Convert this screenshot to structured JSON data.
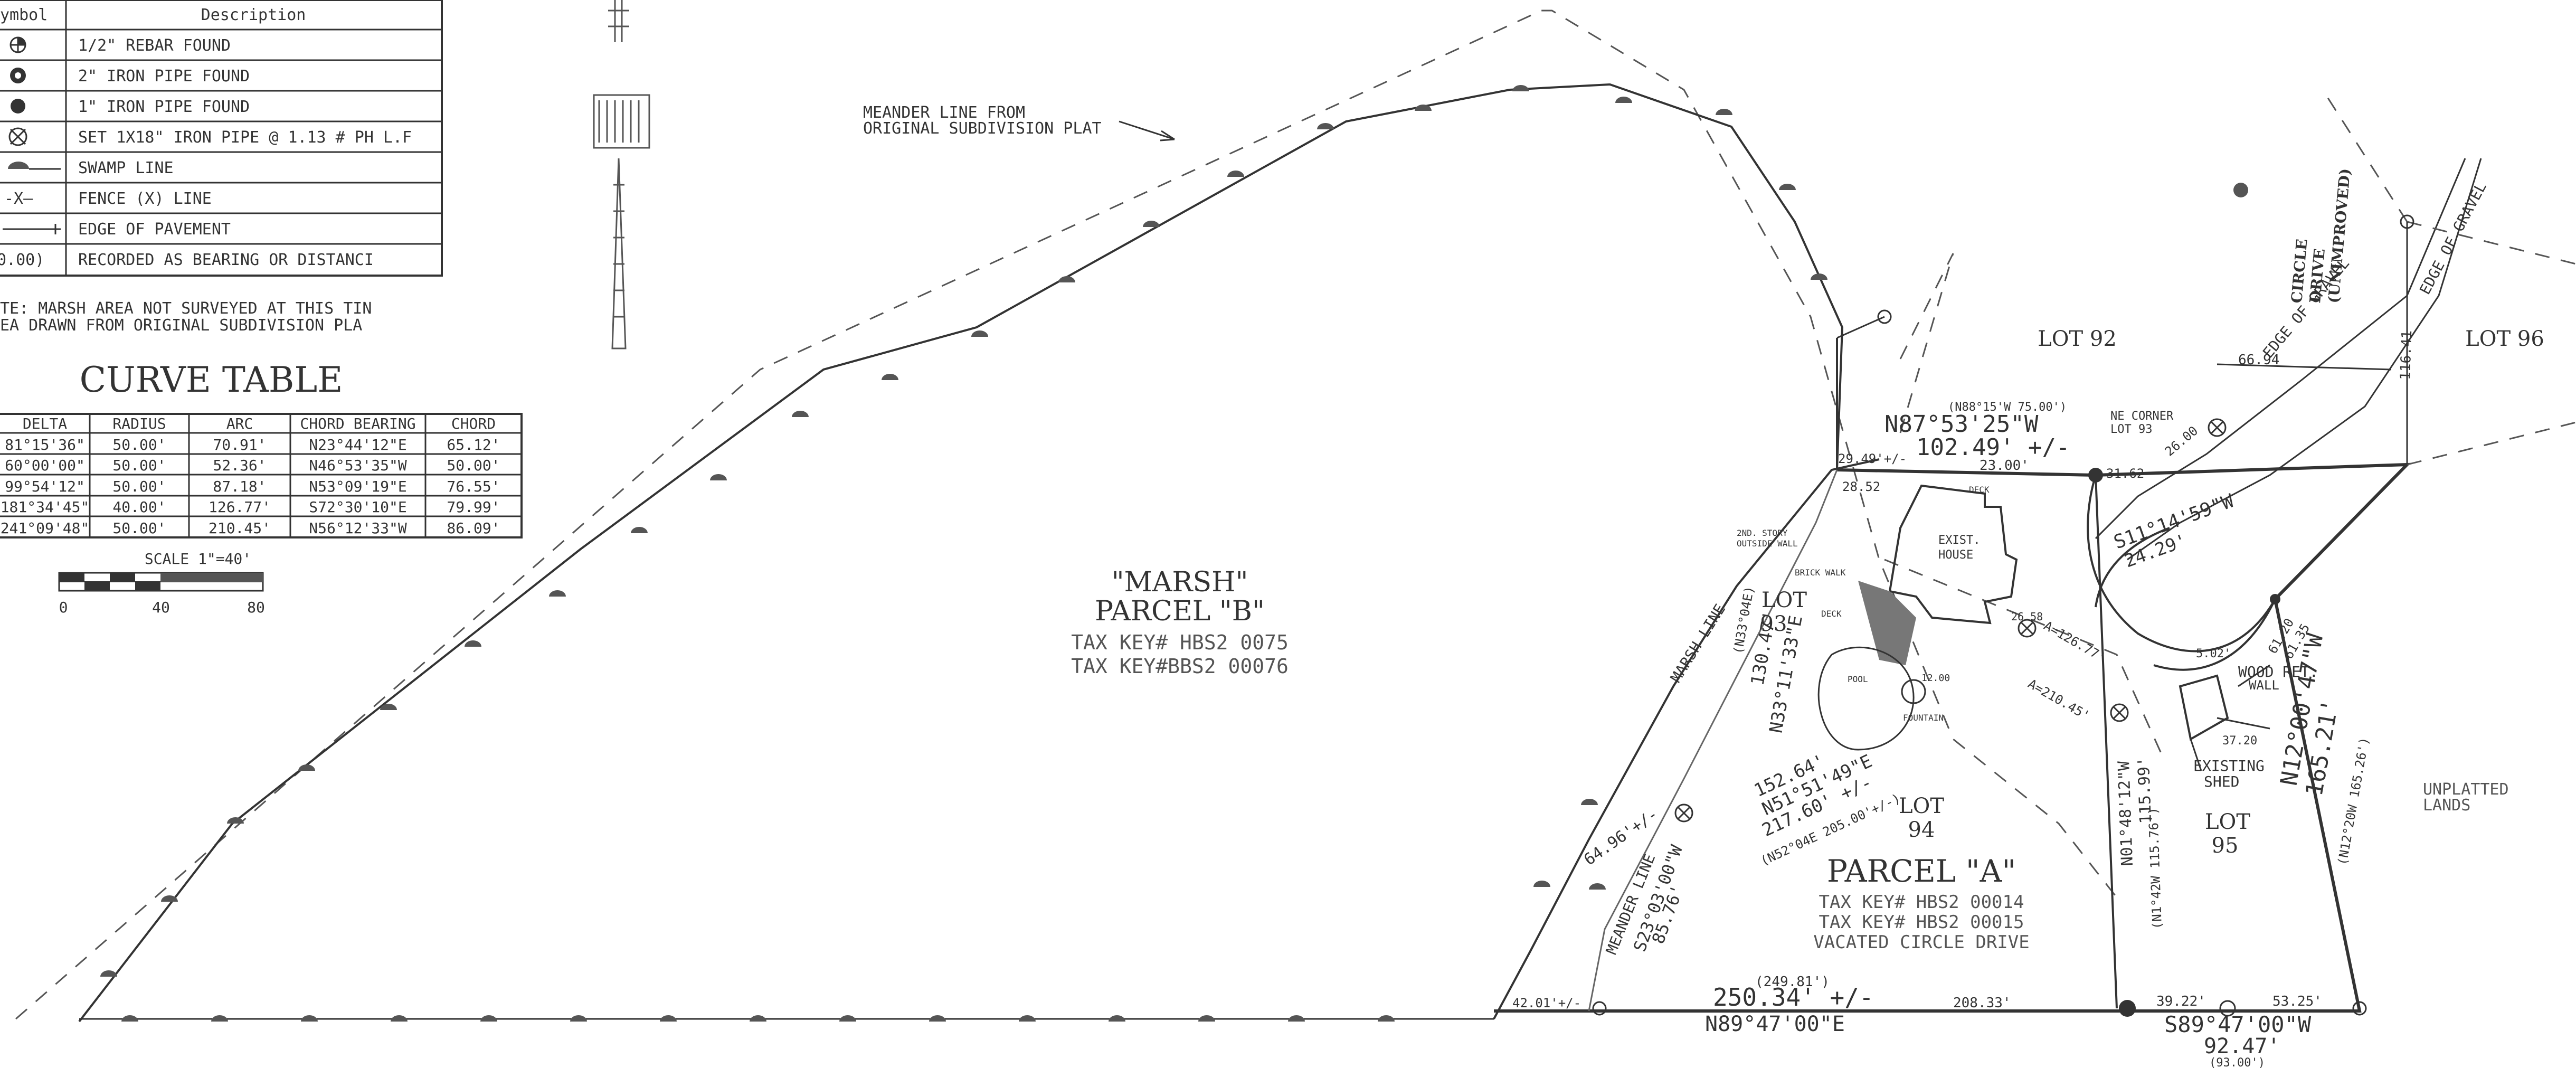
{
  "legend": {
    "headers": {
      "symbol": "ymbol",
      "description": "Description"
    },
    "rows": [
      {
        "symbol": "rebar-found-icon",
        "desc": "1/2\" REBAR FOUND"
      },
      {
        "symbol": "two-inch-pipe-icon",
        "desc": "2\" IRON PIPE FOUND"
      },
      {
        "symbol": "one-inch-pipe-icon",
        "desc": "1\" IRON PIPE FOUND"
      },
      {
        "symbol": "set-pipe-icon",
        "desc": "SET 1X18\" IRON PIPE @ 1.13 # PH L.F"
      },
      {
        "symbol": "swamp-line-icon",
        "desc": "SWAMP LINE"
      },
      {
        "symbol": "fence-line-icon",
        "desc": "FENCE (X) LINE",
        "symbol_text": "-X—"
      },
      {
        "symbol": "edge-pavement-icon",
        "desc": "EDGE OF PAVEMENT"
      },
      {
        "symbol": "recorded-icon",
        "desc": "RECORDED AS BEARING OR DISTANCI",
        "symbol_text": "0.00)"
      }
    ]
  },
  "note": {
    "line1": "TE: MARSH AREA NOT SURVEYED AT THIS TIN",
    "line2": "EA DRAWN FROM ORIGINAL SUBDIVISION PLA"
  },
  "curve_table": {
    "title": "CURVE TABLE",
    "headers": [
      "DELTA",
      "RADIUS",
      "ARC",
      "CHORD BEARING",
      "CHORD"
    ],
    "rows": [
      [
        "81°15'36\"",
        "50.00'",
        "70.91'",
        "N23°44'12\"E",
        "65.12'"
      ],
      [
        "60°00'00\"",
        "50.00'",
        "52.36'",
        "N46°53'35\"W",
        "50.00'"
      ],
      [
        "99°54'12\"",
        "50.00'",
        "87.18'",
        "N53°09'19\"E",
        "76.55'"
      ],
      [
        "181°34'45\"",
        "40.00'",
        "126.77'",
        "S72°30'10\"E",
        "79.99'"
      ],
      [
        "241°09'48\"",
        "50.00'",
        "210.45'",
        "N56°12'33\"W",
        "86.09'"
      ]
    ]
  },
  "scale": {
    "label": "SCALE 1\"=40'",
    "ticks": [
      "0",
      "40",
      "80"
    ]
  },
  "meander_note": {
    "line1": "MEANDER LINE FROM",
    "line2": "ORIGINAL SUBDIVISION PLAT"
  },
  "parcel_b": {
    "line1": "\"MARSH\"",
    "line2": "PARCEL \"B\"",
    "tax1": "TAX KEY# HBS2 0075",
    "tax2": "TAX KEY#BBS2 00076"
  },
  "parcel_a": {
    "title": "PARCEL \"A\"",
    "tax1": "TAX KEY# HBS2 00014",
    "tax2": "TAX KEY# HBS2 00015",
    "vacated": "VACATED CIRCLE DRIVE"
  },
  "lots": {
    "lot92": "LOT 92",
    "lot93_a": "LOT",
    "lot93_b": "93",
    "lot94_a": "LOT",
    "lot94_b": "94",
    "lot95_a": "LOT",
    "lot95_b": "95",
    "lot96": "LOT 96"
  },
  "features": {
    "exist_house_1": "EXIST.",
    "exist_house_2": "HOUSE",
    "existing_shed_1": "EXISTING",
    "existing_shed_2": "SHED",
    "wood_ret": "WOOD RET.",
    "wall": "WALL",
    "pool": "POOL",
    "fountain": "FOUNTAIN",
    "deck": "DECK",
    "brick_walk": "BRICK WALK",
    "second_story": "2ND. STORY",
    "outside_wall": "OUTSIDE WALL",
    "circle_drive_1": "CIRCLE",
    "circle_drive_2": "DRIVE",
    "circle_drive_3": "(UNIMPROVED)",
    "edge_gravel": "EDGE OF GRAVEL",
    "unplatted_1": "UNPLATTED",
    "unplatted_2": "LANDS",
    "marsh_line": "MARSH LINE",
    "meander_line": "MEANDER LINE",
    "ne_corner_1": "NE CORNER",
    "ne_corner_2": "LOT 93"
  },
  "bearings": {
    "north_rec": "(N88°15'W  75.00')",
    "north_bearing": "N87°53'25\"W",
    "north_dist": "102.49' +/-",
    "north_sub": "23.00'",
    "d29": "29.49'+/-",
    "d2852": "28.52",
    "d31": "31.62",
    "d6694": "66.94",
    "d11641": "116.41",
    "d2600": "26.00",
    "s11": "S11°14'59\"W",
    "s11_dist": "24.29'",
    "d2658": "26.58",
    "d502": "5.02'",
    "d3720": "37.20",
    "east_bearing": "N12°00'47\"W",
    "east_dist": "165.21'",
    "east_rec": "(N12°20W  165.26')",
    "d6120": "61.20",
    "d6135": "61.35",
    "nw1": "N51°51'49\"E",
    "nw1_a": "152.64'",
    "nw1_dist": "217.60' +/-",
    "nw1_rec": "(N52°04E  205.00'+/-)",
    "mid_bearing": "N01°48'12\"W",
    "mid_dist": "115.99'",
    "mid_rec": "(N1°42W  115.76')",
    "n33": "N33°11'33\"E",
    "n33_dist": "130.47'",
    "n33_rec": "(N33°04E)",
    "s23": "S23°03'00\"W",
    "s23_dist": "85.76'",
    "d6496": "64.96'+/-",
    "south_rec": "(249.81')",
    "south_dist": "250.34' +/-",
    "south_bearing": "N89°47'00\"E",
    "d4201": "42.01'+/-",
    "d20833": "208.33'",
    "d3922": "39.22'",
    "d5325": "53.25'",
    "se_bearing": "S89°47'00\"W",
    "se_dist": "92.47'",
    "se_rec": "(93.00')",
    "a126": "A=126.77'",
    "a210": "A=210.45'",
    "d1200": "12.00"
  }
}
